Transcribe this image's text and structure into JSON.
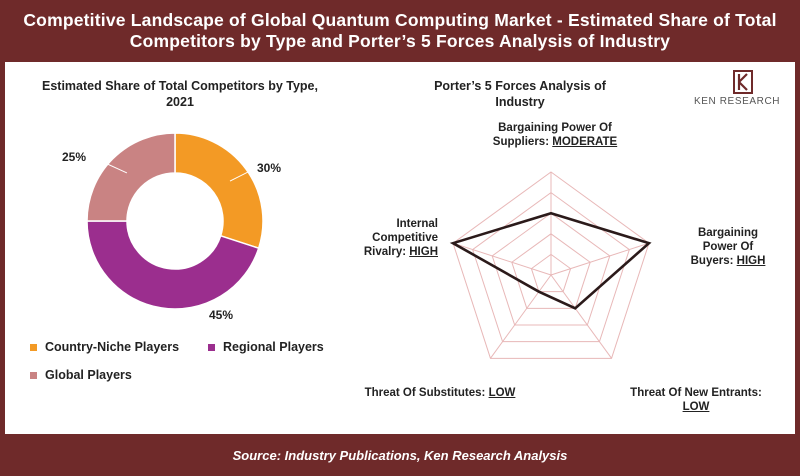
{
  "header": {
    "title": "Competitive Landscape of Global Quantum Computing Market - Estimated Share of Total Competitors by Type and Porter’s 5 Forces Analysis of Industry"
  },
  "footer": {
    "source": "Source: Industry Publications, Ken Research Analysis"
  },
  "logo": {
    "text": "KEN RESEARCH"
  },
  "colors": {
    "brand": "#6f2a2a",
    "country_niche": "#f39a25",
    "regional": "#9b2e8e",
    "global": "#c98383",
    "radar_web": "#e8b8b8",
    "radar_line": "#2b1a1a"
  },
  "chart_data": [
    {
      "type": "pie",
      "subtype": "donut",
      "title": "Estimated Share of Total Competitors by Type, 2021",
      "categories": [
        "Country-Niche Players",
        "Regional Players",
        "Global Players"
      ],
      "values": [
        30,
        45,
        25
      ],
      "value_labels": [
        "30%",
        "45%",
        "25%"
      ],
      "legend_position": "bottom-left"
    },
    {
      "type": "radar",
      "title": "Porter’s 5 Forces Analysis of Industry",
      "axes": [
        {
          "name": "Bargaining Power Of Suppliers:",
          "rating": "MODERATE",
          "value": 3
        },
        {
          "name": "Bargaining Power Of Buyers:",
          "rating": "HIGH",
          "value": 5
        },
        {
          "name": "Threat Of New Entrants:",
          "rating": "LOW",
          "value": 2
        },
        {
          "name": "Threat Of Substitutes:",
          "rating": "LOW",
          "value": 1
        },
        {
          "name": "Internal Competitive Rivalry:",
          "rating": "HIGH",
          "value": 5
        }
      ],
      "scale_max": 5,
      "grid": true
    }
  ]
}
